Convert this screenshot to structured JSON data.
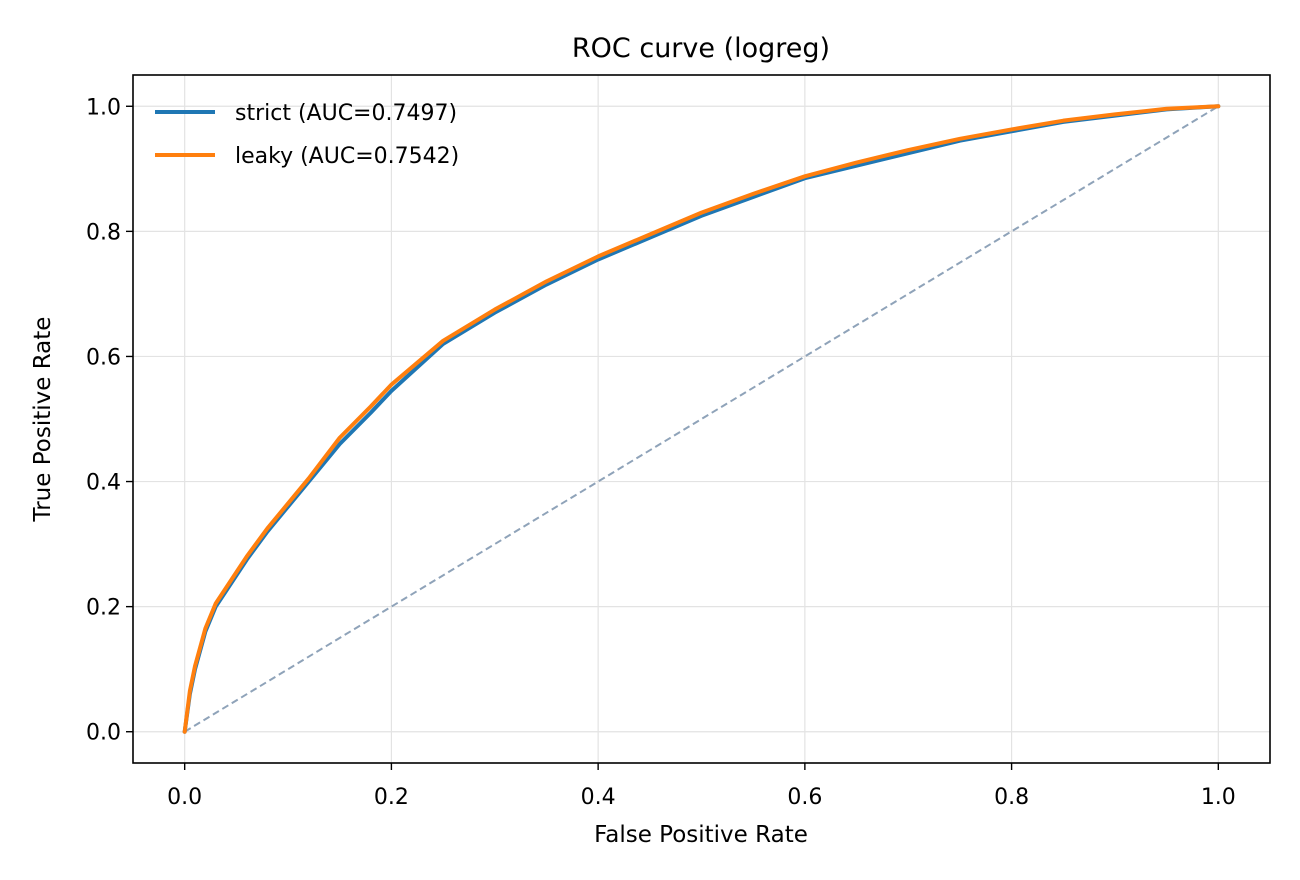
{
  "chart_data": {
    "type": "line",
    "title": "ROC curve (logreg)",
    "xlabel": "False Positive Rate",
    "ylabel": "True Positive Rate",
    "xlim": [
      -0.05,
      1.05
    ],
    "ylim": [
      -0.05,
      1.05
    ],
    "xticks": [
      "0.0",
      "0.2",
      "0.4",
      "0.6",
      "0.8",
      "1.0"
    ],
    "yticks": [
      "0.0",
      "0.2",
      "0.4",
      "0.6",
      "0.8",
      "1.0"
    ],
    "grid": true,
    "legend_position": "top-left",
    "diagonal": {
      "x": [
        0,
        1
      ],
      "y": [
        0,
        1
      ],
      "color": "#8fa3b9",
      "style": "dashed"
    },
    "series": [
      {
        "name": "strict (AUC=0.7497)",
        "color": "#1f77b4",
        "x": [
          0,
          0.005,
          0.01,
          0.02,
          0.03,
          0.04,
          0.05,
          0.06,
          0.08,
          0.1,
          0.12,
          0.15,
          0.18,
          0.2,
          0.25,
          0.3,
          0.35,
          0.4,
          0.45,
          0.5,
          0.55,
          0.6,
          0.65,
          0.7,
          0.75,
          0.8,
          0.85,
          0.9,
          0.95,
          1.0
        ],
        "y": [
          0,
          0.06,
          0.1,
          0.16,
          0.2,
          0.225,
          0.25,
          0.275,
          0.32,
          0.36,
          0.4,
          0.46,
          0.51,
          0.545,
          0.62,
          0.67,
          0.715,
          0.755,
          0.79,
          0.825,
          0.855,
          0.885,
          0.905,
          0.925,
          0.945,
          0.96,
          0.975,
          0.985,
          0.995,
          1.0
        ]
      },
      {
        "name": "leaky (AUC=0.7542)",
        "color": "#ff7f0e",
        "x": [
          0,
          0.005,
          0.01,
          0.02,
          0.03,
          0.04,
          0.05,
          0.06,
          0.08,
          0.1,
          0.12,
          0.15,
          0.18,
          0.2,
          0.25,
          0.3,
          0.35,
          0.4,
          0.45,
          0.5,
          0.55,
          0.6,
          0.65,
          0.7,
          0.75,
          0.8,
          0.85,
          0.9,
          0.95,
          1.0
        ],
        "y": [
          0,
          0.065,
          0.105,
          0.165,
          0.205,
          0.23,
          0.255,
          0.28,
          0.325,
          0.365,
          0.405,
          0.47,
          0.52,
          0.555,
          0.625,
          0.675,
          0.72,
          0.76,
          0.795,
          0.83,
          0.86,
          0.888,
          0.91,
          0.93,
          0.948,
          0.963,
          0.977,
          0.987,
          0.996,
          1.0
        ]
      }
    ]
  }
}
